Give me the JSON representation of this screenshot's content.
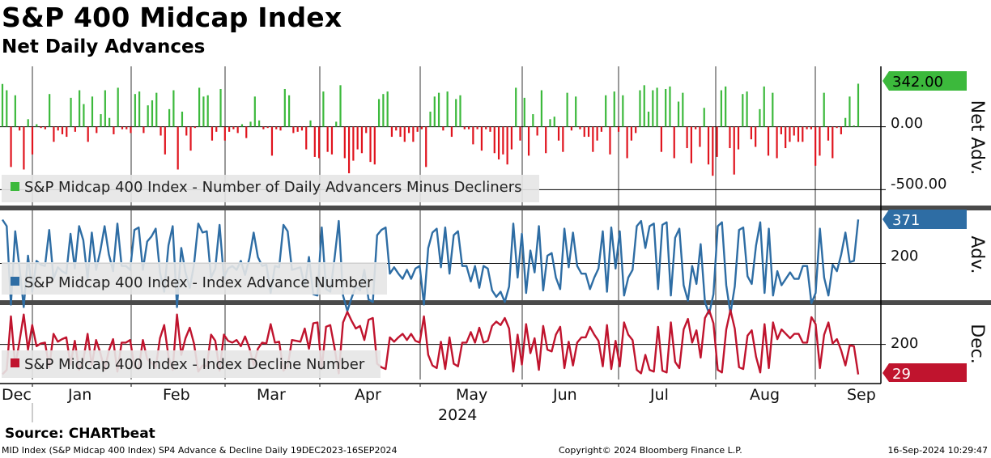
{
  "title": "S&P 400 Midcap Index",
  "subtitle": "Net Daily Advances",
  "source": "Source: CHARTbeat",
  "footer": {
    "left": "MID Index (S&P Midcap 400 Index) SP4 Advance & Decline  Daily 19DEC2023-16SEP2024",
    "center": "Copyright© 2024 Bloomberg Finance L.P.",
    "right": "16-Sep-2024 10:29:47"
  },
  "colors": {
    "positive": "#3cb93c",
    "negative": "#e0141e",
    "advance": "#2e6da4",
    "decline": "#c0142e"
  },
  "chart_data": [
    {
      "type": "bar",
      "panel": "top",
      "ylabel": "Net Adv.",
      "ylim": [
        -620,
        480
      ],
      "yticks": [
        {
          "value": 0,
          "label": "0.00"
        },
        {
          "value": -500,
          "label": "-500.00"
        }
      ],
      "last_value_label": "342.00",
      "legend": "S&P Midcap 400 Index - Number of Daily Advancers Minus Decliners",
      "series": [
        {
          "name": "S&P Midcap 400 Index - Number of Daily Advancers Minus Decliners",
          "values": [
            340,
            290,
            -320,
            250,
            -30,
            -340,
            60,
            -220,
            20,
            -10,
            -20,
            260,
            -120,
            -30,
            -60,
            -80,
            230,
            -40,
            290,
            180,
            -120,
            240,
            -50,
            100,
            290,
            70,
            -60,
            310,
            -20,
            -20,
            -50,
            260,
            280,
            -50,
            170,
            210,
            270,
            -70,
            -220,
            140,
            290,
            -340,
            120,
            -70,
            -190,
            -10,
            310,
            240,
            250,
            -110,
            -40,
            300,
            -110,
            -40,
            -20,
            -50,
            20,
            -90,
            40,
            240,
            50,
            -20,
            -10,
            -230,
            -20,
            -30,
            300,
            250,
            -50,
            -40,
            -30,
            -180,
            50,
            -240,
            -250,
            280,
            -200,
            -220,
            40,
            330,
            -250,
            -370,
            -270,
            -180,
            -210,
            -50,
            -280,
            -300,
            220,
            260,
            280,
            -80,
            -30,
            -80,
            -120,
            -50,
            -120,
            -40,
            -20,
            -320,
            120,
            240,
            270,
            -30,
            280,
            -80,
            220,
            250,
            -20,
            -20,
            -140,
            -20,
            -190,
            -20,
            -40,
            -210,
            -260,
            -220,
            -300,
            -180,
            310,
            -110,
            230,
            -230,
            100,
            -70,
            290,
            -210,
            60,
            80,
            -110,
            -200,
            270,
            -30,
            240,
            -20,
            -80,
            -80,
            -200,
            -110,
            -40,
            250,
            -220,
            280,
            -40,
            250,
            -250,
            -110,
            -50,
            290,
            330,
            120,
            290,
            310,
            -200,
            300,
            320,
            -250,
            200,
            270,
            -170,
            -290,
            -20,
            -160,
            150,
            -300,
            -390,
            -240,
            290,
            320,
            -170,
            -380,
            -180,
            260,
            280,
            -100,
            -160,
            140,
            320,
            -230,
            270,
            -250,
            -60,
            -170,
            -120,
            -70,
            -120,
            -120,
            -20,
            -20,
            -310,
            -230,
            270,
            -110,
            -250,
            -10,
            -60,
            70,
            240,
            10,
            342
          ]
        }
      ]
    },
    {
      "type": "line",
      "panel": "middle",
      "ylabel": "Adv.",
      "ylim": [
        60,
        400
      ],
      "yticks": [
        {
          "value": 200,
          "label": "200"
        }
      ],
      "last_value_label": "371",
      "legend": "S&P Midcap 400 Index - Index Advance Number",
      "series": [
        {
          "name": "S&P Midcap 400 Index - Index Advance Number",
          "values": [
            370,
            345,
            40,
            325,
            185,
            30,
            230,
            90,
            210,
            195,
            190,
            330,
            140,
            185,
            170,
            160,
            315,
            180,
            345,
            290,
            140,
            320,
            175,
            250,
            345,
            235,
            170,
            355,
            190,
            190,
            175,
            330,
            340,
            175,
            285,
            305,
            335,
            165,
            90,
            270,
            345,
            30,
            260,
            165,
            105,
            195,
            355,
            320,
            325,
            145,
            180,
            350,
            145,
            180,
            190,
            175,
            210,
            155,
            220,
            320,
            225,
            190,
            195,
            85,
            190,
            185,
            350,
            325,
            175,
            180,
            185,
            110,
            225,
            80,
            75,
            340,
            100,
            90,
            220,
            365,
            75,
            15,
            65,
            110,
            95,
            175,
            60,
            50,
            310,
            330,
            340,
            160,
            185,
            160,
            140,
            175,
            140,
            180,
            190,
            40,
            260,
            320,
            335,
            185,
            340,
            160,
            310,
            325,
            190,
            190,
            130,
            190,
            105,
            190,
            180,
            95,
            70,
            90,
            50,
            110,
            355,
            145,
            315,
            85,
            250,
            165,
            345,
            95,
            230,
            240,
            145,
            100,
            335,
            185,
            320,
            190,
            160,
            160,
            100,
            145,
            180,
            325,
            90,
            340,
            180,
            325,
            75,
            145,
            175,
            345,
            365,
            260,
            345,
            355,
            100,
            350,
            360,
            75,
            300,
            335,
            115,
            55,
            190,
            120,
            275,
            50,
            5,
            80,
            345,
            360,
            115,
            5,
            110,
            330,
            340,
            150,
            120,
            270,
            360,
            85,
            335,
            75,
            170,
            115,
            140,
            165,
            140,
            140,
            190,
            190,
            45,
            85,
            335,
            145,
            75,
            195,
            170,
            235,
            320,
            205,
            210,
            371
          ]
        }
      ]
    },
    {
      "type": "line",
      "panel": "bottom",
      "ylabel": "Dec.",
      "ylim": [
        0,
        410
      ],
      "yticks": [
        {
          "value": 200,
          "label": "200"
        }
      ],
      "last_value_label": "29",
      "legend": "S&P Midcap 400 Index - Index Decline Number",
      "series": [
        {
          "name": "S&P Midcap 400 Index - Index Decline Number",
          "values": [
            30,
            55,
            360,
            75,
            215,
            370,
            170,
            310,
            190,
            205,
            210,
            70,
            260,
            215,
            230,
            240,
            85,
            220,
            55,
            110,
            260,
            80,
            225,
            150,
            55,
            165,
            230,
            45,
            210,
            210,
            225,
            70,
            60,
            225,
            115,
            95,
            65,
            235,
            310,
            130,
            55,
            370,
            140,
            235,
            295,
            205,
            45,
            80,
            75,
            255,
            220,
            50,
            255,
            220,
            210,
            225,
            190,
            245,
            180,
            80,
            175,
            210,
            205,
            315,
            210,
            215,
            50,
            75,
            225,
            220,
            215,
            290,
            175,
            320,
            325,
            60,
            300,
            310,
            180,
            35,
            325,
            385,
            335,
            290,
            305,
            225,
            340,
            350,
            90,
            70,
            60,
            240,
            215,
            240,
            260,
            225,
            260,
            220,
            210,
            360,
            140,
            80,
            65,
            215,
            60,
            240,
            90,
            75,
            210,
            210,
            270,
            210,
            295,
            210,
            220,
            305,
            330,
            310,
            350,
            290,
            45,
            255,
            85,
            315,
            150,
            235,
            55,
            305,
            170,
            160,
            255,
            300,
            65,
            215,
            80,
            210,
            240,
            240,
            300,
            255,
            220,
            75,
            310,
            60,
            220,
            75,
            325,
            255,
            225,
            55,
            35,
            140,
            55,
            45,
            300,
            50,
            40,
            325,
            100,
            65,
            285,
            345,
            210,
            280,
            125,
            350,
            395,
            320,
            55,
            40,
            285,
            395,
            290,
            70,
            60,
            250,
            280,
            130,
            40,
            315,
            65,
            325,
            230,
            285,
            260,
            235,
            260,
            260,
            210,
            210,
            355,
            315,
            65,
            255,
            325,
            205,
            230,
            165,
            80,
            195,
            190,
            29
          ]
        }
      ]
    }
  ],
  "x_axis": {
    "labels": [
      "Dec",
      "Jan",
      "Feb",
      "Mar",
      "Apr",
      "May",
      "Jun",
      "Jul",
      "Aug",
      "Sep"
    ],
    "year_label": "2024"
  }
}
